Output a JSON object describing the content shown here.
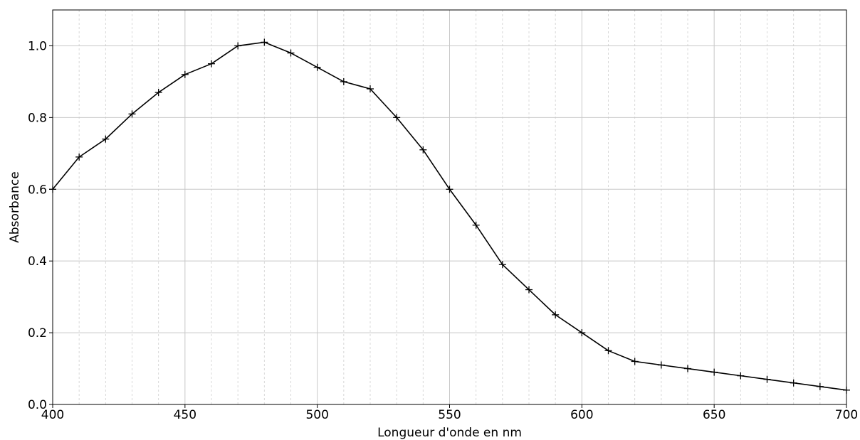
{
  "chart_data": {
    "type": "line",
    "title": "",
    "xlabel": "Longueur d'onde en nm",
    "ylabel": "Absorbance",
    "xlim": [
      400,
      700
    ],
    "ylim": [
      0.0,
      1.1
    ],
    "x_ticks": [
      "400",
      "450",
      "500",
      "550",
      "600",
      "650",
      "700"
    ],
    "y_ticks": [
      "0.0",
      "0.2",
      "0.4",
      "0.6",
      "0.8",
      "1.0"
    ],
    "grid": {
      "major": true,
      "minor_x": true,
      "minor_x_step": 10
    },
    "marker": "+",
    "line_color": "#000000",
    "series": [
      {
        "x": [
          400,
          410,
          420,
          430,
          440,
          450,
          460,
          470,
          480,
          490,
          500,
          510,
          520,
          530,
          540,
          550,
          560,
          570,
          580,
          590,
          600,
          610,
          620,
          630,
          640,
          650,
          660,
          670,
          680,
          690,
          700
        ],
        "y": [
          0.6,
          0.69,
          0.74,
          0.81,
          0.87,
          0.92,
          0.95,
          1.0,
          1.01,
          0.98,
          0.94,
          0.9,
          0.88,
          0.8,
          0.71,
          0.6,
          0.5,
          0.39,
          0.32,
          0.25,
          0.2,
          0.15,
          0.12,
          0.11,
          0.1,
          0.09,
          0.08,
          0.07,
          0.06,
          0.05,
          0.04
        ]
      }
    ]
  }
}
